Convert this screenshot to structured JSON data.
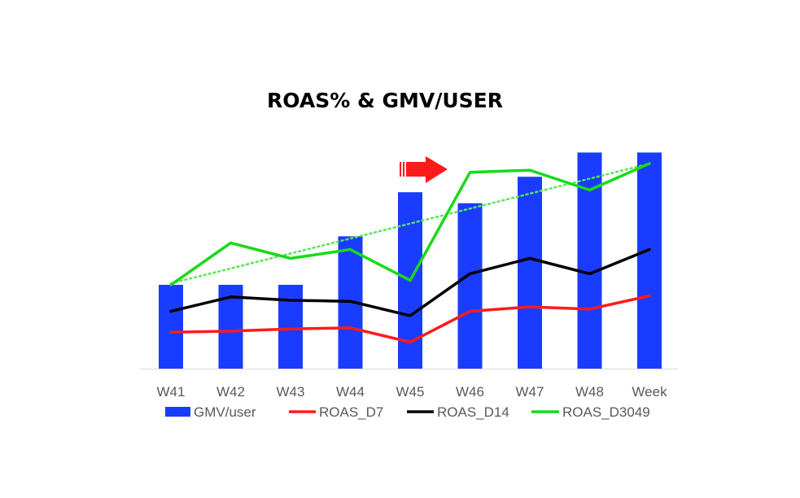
{
  "chart_data": {
    "type": "bar",
    "title": "ROAS% & GMV/USER",
    "categories": [
      "W41",
      "W42",
      "W43",
      "W44",
      "W45",
      "W46",
      "W47",
      "W48",
      "Week"
    ],
    "ylim": [
      0,
      100
    ],
    "grid": false,
    "legend_position": "bottom",
    "series": [
      {
        "name": "GMV/user",
        "type": "bar",
        "color": "#1a3cff",
        "values": [
          38,
          38,
          38,
          60,
          80,
          75,
          87,
          98,
          98
        ]
      },
      {
        "name": "ROAS_D7",
        "type": "line",
        "color": "#ff1a1a",
        "values": [
          16.5,
          17,
          18,
          18.5,
          12,
          26,
          28,
          27,
          33
        ]
      },
      {
        "name": "ROAS_D14",
        "type": "line",
        "color": "#000000",
        "values": [
          26,
          32.5,
          31,
          30.5,
          24,
          43,
          50,
          43,
          54
        ]
      },
      {
        "name": "ROAS_D3049",
        "type": "line",
        "color": "#1ad91a",
        "values": [
          38,
          57,
          50,
          54,
          40,
          89,
          90,
          81,
          93
        ]
      }
    ],
    "trendline": {
      "series": "ROAS_D3049",
      "style": "dotted",
      "color": "#55e855"
    },
    "annotation": {
      "type": "arrow",
      "color": "#ff1a1a",
      "near": "W45"
    }
  }
}
